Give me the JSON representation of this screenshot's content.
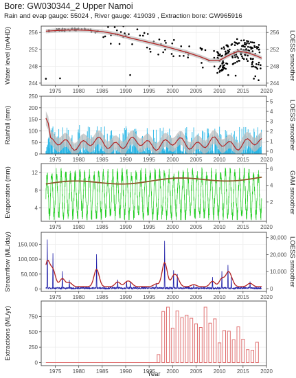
{
  "title": "Bore: GW030344_2  Upper Namoi",
  "subtitle": "Rain and evap gauge: 55024 , River gauge:  419039 , Extraction bore:  GW965916",
  "xlabel": "Year",
  "colors": {
    "panel_bg": "#ffffff",
    "grid": "#ececec",
    "border": "#444444",
    "smoother": "#b22222",
    "ribbon": "#bdbdbd",
    "points": "#000000",
    "rain": "#29b6e6",
    "evap": "#22cc22",
    "flow": "#1f1fa8",
    "extraction": "#e07070"
  },
  "chart_data": [
    {
      "type": "scatter",
      "ylabel": "Water level (mAHD)",
      "y2label": "LOESS smoother",
      "xlim": [
        1972,
        2020
      ],
      "ylim": [
        243.5,
        257.5
      ],
      "yticks": [
        244,
        248,
        252,
        256
      ],
      "xticks": [
        1975,
        1980,
        1985,
        1990,
        1995,
        2000,
        2005,
        2010,
        2015,
        2020
      ],
      "smoother": {
        "x": [
          1973,
          1976,
          1979,
          1982,
          1985,
          1988,
          1991,
          1994,
          1997,
          2000,
          2003,
          2006,
          2008,
          2010,
          2012,
          2014,
          2016,
          2018,
          2019
        ],
        "y": [
          256.3,
          256.5,
          256.6,
          256.5,
          256.2,
          255.6,
          254.7,
          253.9,
          253.1,
          252.2,
          251.3,
          250.2,
          249.3,
          249.4,
          250.6,
          251.6,
          251.2,
          250.4,
          249.9
        ]
      }
    },
    {
      "type": "line",
      "ylabel": "Rainfall (mm)",
      "y2label": "LOESS smoother",
      "xlim": [
        1972,
        2020
      ],
      "ylim": [
        0,
        250
      ],
      "yticks": [
        0,
        50,
        100,
        150,
        200,
        250
      ],
      "y2ticks": [
        0,
        1,
        2,
        3,
        4,
        5
      ],
      "xticks": [
        1975,
        1980,
        1985,
        1990,
        1995,
        2000,
        2005,
        2010,
        2015,
        2020
      ]
    },
    {
      "type": "line",
      "ylabel": "Evaporation (mm)",
      "y2label": "GAM smoother",
      "xlim": [
        1972,
        2020
      ],
      "ylim": [
        1,
        14
      ],
      "yticks": [
        4,
        8,
        12
      ],
      "y2ticks": [
        2,
        4,
        6
      ],
      "xticks": [
        1975,
        1980,
        1985,
        1990,
        1995,
        2000,
        2005,
        2010,
        2015,
        2020
      ]
    },
    {
      "type": "line",
      "ylabel": "Streamflow (ML/day)",
      "y2label": "LOESS smoother",
      "xlim": [
        1972,
        2020
      ],
      "ylim": [
        -8000,
        190000
      ],
      "yticks": [
        0,
        50000,
        100000,
        150000
      ],
      "yticklabels": [
        "0",
        "50,000",
        "100,000",
        "150,000"
      ],
      "y2ticks": [
        0,
        10000,
        20000,
        30000
      ],
      "y2ticklabels": [
        "0",
        "10,000",
        "20,000",
        "30,000"
      ],
      "xticks": [
        1975,
        1980,
        1985,
        1990,
        1995,
        2000,
        2005,
        2010,
        2015,
        2020
      ]
    },
    {
      "type": "bar",
      "ylabel": "Extractions (ML/yr)",
      "xlim": [
        1972,
        2020
      ],
      "ylim": [
        -50,
        1000
      ],
      "yticks": [
        0,
        250,
        500,
        750
      ],
      "xticks": [
        1975,
        1980,
        1985,
        1990,
        1995,
        2000,
        2005,
        2010,
        2015,
        2020
      ],
      "x": [
        1997,
        1998,
        1999,
        2000,
        2001,
        2002,
        2003,
        2004,
        2005,
        2006,
        2007,
        2008,
        2009,
        2010,
        2011,
        2012,
        2013,
        2014,
        2015,
        2016,
        2017,
        2018
      ],
      "values": [
        130,
        830,
        900,
        560,
        840,
        730,
        770,
        720,
        630,
        570,
        900,
        640,
        710,
        320,
        520,
        510,
        370,
        580,
        380,
        210,
        200,
        330
      ]
    }
  ]
}
